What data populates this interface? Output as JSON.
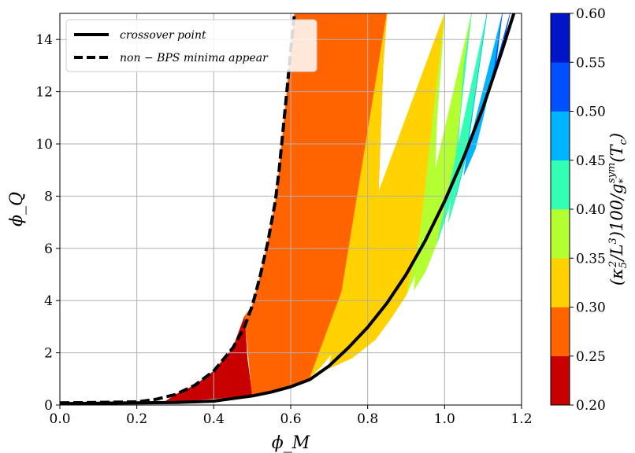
{
  "chart_data": {
    "type": "area",
    "xlabel": "ϕ_M",
    "ylabel": "ϕ_Q",
    "xlim": [
      0.0,
      1.2
    ],
    "ylim": [
      0,
      15
    ],
    "x_ticks": [
      0.0,
      0.2,
      0.4,
      0.6,
      0.8,
      1.0,
      1.2
    ],
    "x_tick_labels": [
      "0.0",
      "0.2",
      "0.4",
      "0.6",
      "0.8",
      "1.0",
      "1.2"
    ],
    "y_ticks": [
      0,
      2,
      4,
      6,
      8,
      10,
      12,
      14
    ],
    "y_tick_labels": [
      "0",
      "2",
      "4",
      "6",
      "8",
      "10",
      "12",
      "14"
    ],
    "grid": true,
    "legend_position": "top-left",
    "series": [
      {
        "name": "crossover point",
        "style": "solid",
        "points": [
          [
            0.0,
            0.05
          ],
          [
            0.1,
            0.07
          ],
          [
            0.2,
            0.08
          ],
          [
            0.3,
            0.1
          ],
          [
            0.4,
            0.15
          ],
          [
            0.45,
            0.25
          ],
          [
            0.5,
            0.35
          ],
          [
            0.55,
            0.5
          ],
          [
            0.6,
            0.7
          ],
          [
            0.65,
            0.98
          ],
          [
            0.7,
            1.5
          ],
          [
            0.75,
            2.2
          ],
          [
            0.8,
            2.98
          ],
          [
            0.85,
            3.9
          ],
          [
            0.9,
            5.0
          ],
          [
            0.95,
            6.3
          ],
          [
            1.0,
            7.8
          ],
          [
            1.05,
            9.5
          ],
          [
            1.1,
            11.4
          ],
          [
            1.15,
            13.6
          ],
          [
            1.18,
            15.0
          ]
        ]
      },
      {
        "name": "non − BPS minima appear",
        "style": "dashed",
        "points": [
          [
            0.0,
            0.08
          ],
          [
            0.1,
            0.1
          ],
          [
            0.2,
            0.12
          ],
          [
            0.25,
            0.22
          ],
          [
            0.3,
            0.4
          ],
          [
            0.35,
            0.75
          ],
          [
            0.4,
            1.3
          ],
          [
            0.45,
            2.2
          ],
          [
            0.48,
            3.0
          ],
          [
            0.5,
            3.8
          ],
          [
            0.52,
            4.9
          ],
          [
            0.54,
            6.2
          ],
          [
            0.56,
            7.8
          ],
          [
            0.57,
            9.0
          ],
          [
            0.58,
            10.5
          ],
          [
            0.59,
            12.0
          ],
          [
            0.6,
            13.6
          ],
          [
            0.61,
            15.0
          ]
        ]
      }
    ],
    "colorbar": {
      "label": "(κ₅²/L³)100/g*^sym(T_c)",
      "label_main": "(κ",
      "label_sub_5": "5",
      "label_sup_2": "2",
      "label_mid": "/L",
      "label_sup_3": "3",
      "label_tail": ")100/g",
      "label_sub_star": "*",
      "label_sup_sym": "sym",
      "label_end": "(T",
      "label_sub_c": "c",
      "label_close": ")",
      "levels": [
        0.2,
        0.25,
        0.3,
        0.35,
        0.4,
        0.45,
        0.5,
        0.55,
        0.6
      ],
      "tick_labels": [
        "0.20",
        "0.25",
        "0.30",
        "0.35",
        "0.40",
        "0.45",
        "0.50",
        "0.55",
        "0.60"
      ],
      "colors": [
        "#c80000",
        "#ff6400",
        "#ffd200",
        "#b4ff32",
        "#32ffb4",
        "#00b4ff",
        "#0050ff",
        "#0014c8"
      ]
    },
    "bands": [
      {
        "color": "#c80000",
        "left": [
          [
            0.27,
            0.1
          ],
          [
            0.3,
            0.4
          ],
          [
            0.35,
            0.75
          ],
          [
            0.4,
            1.3
          ],
          [
            0.45,
            2.2
          ],
          [
            0.47,
            3.0
          ],
          [
            0.48,
            3.4
          ]
        ],
        "right": [
          [
            0.48,
            3.4
          ],
          [
            0.487,
            1.8
          ],
          [
            0.5,
            0.35
          ]
        ]
      },
      {
        "color": "#ff6400",
        "left": [
          [
            0.48,
            3.4
          ],
          [
            0.5,
            3.8
          ],
          [
            0.52,
            4.9
          ],
          [
            0.54,
            6.2
          ],
          [
            0.56,
            7.8
          ],
          [
            0.57,
            9.0
          ],
          [
            0.58,
            10.5
          ],
          [
            0.59,
            12.0
          ],
          [
            0.6,
            13.6
          ],
          [
            0.61,
            15.0
          ]
        ],
        "right": [
          [
            0.85,
            15.0
          ],
          [
            0.84,
            13.0
          ],
          [
            0.835,
            11.0
          ],
          [
            0.83,
            9.0
          ],
          [
            0.825,
            7.0
          ],
          [
            0.815,
            5.0
          ],
          [
            0.8,
            3.9
          ],
          [
            0.77,
            3.0
          ],
          [
            0.72,
            2.2
          ],
          [
            0.68,
            1.5
          ],
          [
            0.65,
            1.05
          ],
          [
            0.6,
            0.7
          ],
          [
            0.5,
            0.35
          ]
        ]
      },
      {
        "color": "#ffd200",
        "left": [
          [
            0.85,
            15.0
          ],
          [
            0.84,
            13.0
          ],
          [
            0.835,
            11.0
          ],
          [
            0.83,
            9.0
          ],
          [
            0.825,
            7.0
          ],
          [
            0.815,
            5.0
          ],
          [
            0.8,
            3.9
          ],
          [
            0.77,
            3.0
          ],
          [
            0.72,
            2.2
          ],
          [
            0.68,
            1.5
          ],
          [
            0.65,
            1.05
          ]
        ],
        "right": [
          [
            1.0,
            15.0
          ],
          [
            0.99,
            13.0
          ],
          [
            0.98,
            11.0
          ],
          [
            0.975,
            9.0
          ],
          [
            0.96,
            7.0
          ],
          [
            0.93,
            5.2
          ],
          [
            0.9,
            4.2
          ],
          [
            0.86,
            3.3
          ],
          [
            0.82,
            2.5
          ],
          [
            0.76,
            1.8
          ],
          [
            0.7,
            1.4
          ]
        ]
      },
      {
        "color": "#b4ff32",
        "left": [
          [
            1.0,
            15.0
          ],
          [
            0.99,
            13.0
          ],
          [
            0.98,
            11.0
          ],
          [
            0.975,
            9.0
          ],
          [
            0.96,
            7.0
          ],
          [
            0.93,
            5.2
          ],
          [
            0.9,
            4.2
          ]
        ],
        "right": [
          [
            1.07,
            15.0
          ],
          [
            1.05,
            13.0
          ],
          [
            1.04,
            11.0
          ],
          [
            1.03,
            9.0
          ],
          [
            1.01,
            7.5
          ],
          [
            0.98,
            6.2
          ],
          [
            0.95,
            5.1
          ],
          [
            0.92,
            4.4
          ]
        ]
      },
      {
        "color": "#32ffb4",
        "left": [
          [
            1.07,
            15.0
          ],
          [
            1.05,
            13.0
          ],
          [
            1.04,
            11.0
          ],
          [
            1.03,
            9.0
          ],
          [
            1.01,
            7.5
          ],
          [
            0.98,
            6.2
          ]
        ],
        "right": [
          [
            1.11,
            15.0
          ],
          [
            1.09,
            13.0
          ],
          [
            1.07,
            11.0
          ],
          [
            1.055,
            9.5
          ],
          [
            1.03,
            8.0
          ],
          [
            1.01,
            7.0
          ]
        ]
      },
      {
        "color": "#00b4ff",
        "left": [
          [
            1.11,
            15.0
          ],
          [
            1.09,
            13.0
          ],
          [
            1.07,
            11.0
          ],
          [
            1.055,
            9.5
          ],
          [
            1.03,
            8.0
          ]
        ],
        "right": [
          [
            1.15,
            15.0
          ],
          [
            1.13,
            13.0
          ],
          [
            1.1,
            11.0
          ],
          [
            1.08,
            9.8
          ],
          [
            1.05,
            8.8
          ]
        ]
      },
      {
        "color": "#0050ff",
        "left": [
          [
            1.15,
            15.0
          ],
          [
            1.13,
            13.0
          ],
          [
            1.11,
            11.8
          ]
        ],
        "right": [
          [
            1.17,
            15.0
          ],
          [
            1.15,
            13.6
          ],
          [
            1.13,
            12.6
          ]
        ]
      }
    ]
  },
  "legend": {
    "crossover_label": "crossover point",
    "nonbps_label": "non − BPS minima appear"
  }
}
